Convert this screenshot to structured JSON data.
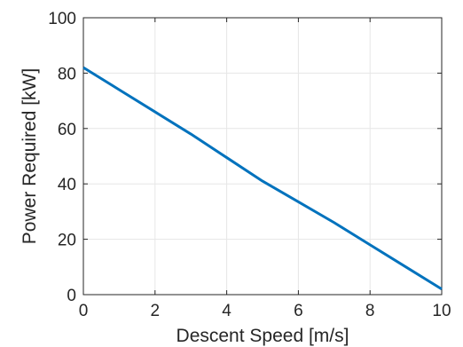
{
  "chart_data": {
    "type": "line",
    "title": "",
    "xlabel": "Descent Speed [m/s]",
    "ylabel": "Power Required [kW]",
    "xlim": [
      0,
      10
    ],
    "ylim": [
      0,
      100
    ],
    "xticks": [
      0,
      2,
      4,
      6,
      8,
      10
    ],
    "yticks": [
      0,
      20,
      40,
      60,
      80,
      100
    ],
    "xtick_labels": [
      "0",
      "2",
      "4",
      "6",
      "8",
      "10"
    ],
    "ytick_labels": [
      "0",
      "20",
      "40",
      "60",
      "80",
      "100"
    ],
    "grid": true,
    "legend": "none",
    "series": [
      {
        "color": "#0072BD",
        "x": [
          0,
          1,
          2,
          3,
          4,
          5,
          6,
          7,
          8,
          9,
          10
        ],
        "y": [
          82,
          74,
          66,
          58,
          49.5,
          41,
          33.5,
          26,
          18,
          10,
          2
        ]
      }
    ]
  }
}
